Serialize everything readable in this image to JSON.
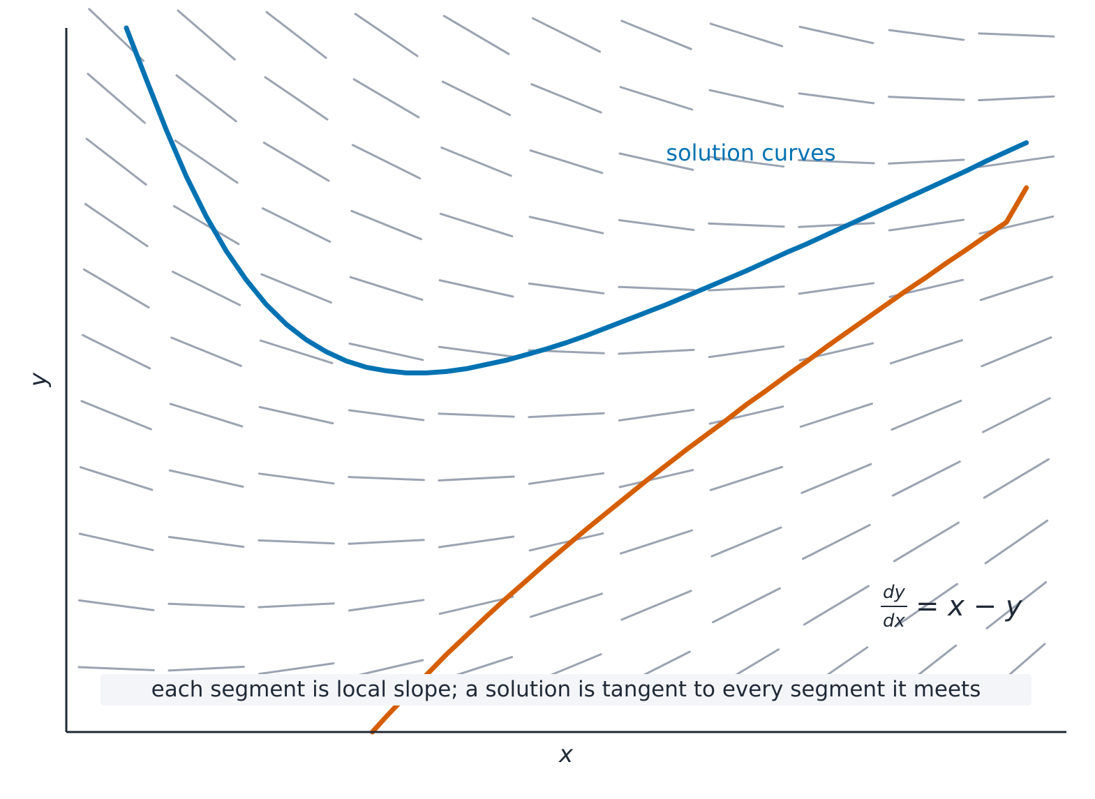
{
  "chart_data": {
    "type": "line",
    "subtype": "slope-field",
    "title": "",
    "xlabel": "x",
    "ylabel": "y",
    "xlim": [
      0,
      1
    ],
    "ylim": [
      0,
      1
    ],
    "ticks": "none",
    "grid": false,
    "equation": {
      "numerator": "dy",
      "denominator": "dx",
      "rhs": "= x − y"
    },
    "slope_field": {
      "label": "",
      "x": [
        0.05,
        0.14,
        0.23,
        0.32,
        0.41,
        0.5,
        0.59,
        0.68,
        0.77,
        0.86,
        0.95
      ],
      "y": [
        0.09,
        0.18,
        0.27,
        0.36,
        0.45,
        0.54,
        0.63,
        0.72,
        0.81,
        0.9,
        0.99
      ],
      "segment_length": 0.075,
      "slope_formula": "dy/dx = x - y",
      "color": "#9aa3b2"
    },
    "series": [
      {
        "name": "",
        "color": "#0072b2",
        "x": [
          0.06,
          0.08,
          0.1,
          0.12,
          0.14,
          0.16,
          0.18,
          0.2,
          0.22,
          0.24,
          0.26,
          0.28,
          0.3,
          0.32,
          0.34,
          0.36,
          0.38,
          0.4,
          0.42,
          0.44,
          0.46,
          0.48,
          0.5,
          0.52,
          0.54,
          0.56,
          0.58,
          0.6,
          0.62,
          0.64,
          0.66,
          0.68,
          0.7,
          0.72,
          0.74,
          0.76,
          0.78,
          0.8,
          0.82,
          0.84,
          0.86,
          0.88,
          0.9,
          0.92,
          0.94,
          0.96
        ],
        "y": [
          1.0,
          0.927,
          0.855,
          0.789,
          0.732,
          0.683,
          0.642,
          0.607,
          0.579,
          0.557,
          0.54,
          0.527,
          0.518,
          0.513,
          0.51,
          0.51,
          0.512,
          0.516,
          0.522,
          0.528,
          0.536,
          0.544,
          0.553,
          0.563,
          0.574,
          0.585,
          0.596,
          0.607,
          0.619,
          0.631,
          0.643,
          0.655,
          0.668,
          0.681,
          0.693,
          0.706,
          0.719,
          0.732,
          0.745,
          0.758,
          0.771,
          0.784,
          0.797,
          0.811,
          0.824,
          0.837
        ]
      },
      {
        "name": "",
        "color": "#d55e00",
        "x": [
          0.306,
          0.32,
          0.34,
          0.36,
          0.38,
          0.4,
          0.42,
          0.44,
          0.46,
          0.48,
          0.5,
          0.52,
          0.54,
          0.56,
          0.58,
          0.6,
          0.62,
          0.64,
          0.66,
          0.68,
          0.7,
          0.72,
          0.74,
          0.76,
          0.78,
          0.8,
          0.82,
          0.84,
          0.86,
          0.88,
          0.9,
          0.92,
          0.94,
          0.96
        ],
        "y": [
          0.0,
          0.022,
          0.052,
          0.081,
          0.11,
          0.137,
          0.164,
          0.19,
          0.215,
          0.24,
          0.264,
          0.288,
          0.311,
          0.334,
          0.357,
          0.379,
          0.401,
          0.422,
          0.443,
          0.465,
          0.485,
          0.506,
          0.526,
          0.547,
          0.567,
          0.587,
          0.607,
          0.627,
          0.646,
          0.666,
          0.685,
          0.705,
          0.724,
          0.773
        ]
      }
    ],
    "annotations": [
      {
        "text": "solution curves",
        "color": "#0072b2"
      },
      {
        "text": "each segment is local slope; a solution is tangent to every segment it meets",
        "color": "#1f2937"
      }
    ]
  }
}
